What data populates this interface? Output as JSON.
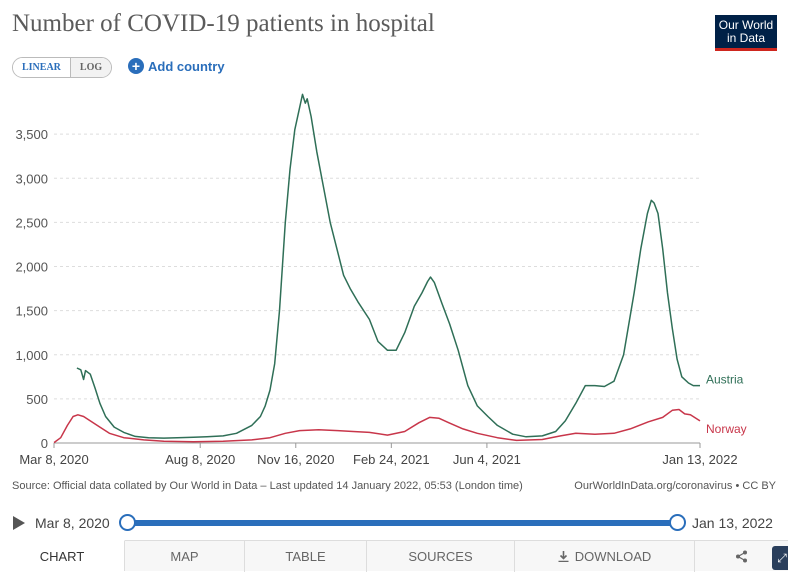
{
  "header": {
    "title": "Number of COVID-19 patients in hospital",
    "logo_line1": "Our World",
    "logo_line2": "in Data"
  },
  "controls": {
    "linear_label": "LINEAR",
    "log_label": "LOG",
    "add_country_label": "Add country"
  },
  "chart_data": {
    "type": "line",
    "title": "Number of COVID-19 patients in hospital",
    "xlabel": "",
    "ylabel": "",
    "ylim": [
      0,
      4000
    ],
    "y_ticks": [
      0,
      500,
      1000,
      1500,
      2000,
      2500,
      3000,
      3500
    ],
    "y_tick_labels": [
      "0",
      "500",
      "1,000",
      "1,500",
      "2,000",
      "2,500",
      "3,000",
      "3,500"
    ],
    "x_range": [
      "2020-03-08",
      "2022-01-13"
    ],
    "x_ticks": [
      "2020-03-08",
      "2020-08-08",
      "2020-11-16",
      "2021-02-24",
      "2021-06-04",
      "2022-01-13"
    ],
    "x_tick_labels": [
      "Mar 8, 2020",
      "Aug 8, 2020",
      "Nov 16, 2020",
      "Feb 24, 2021",
      "Jun 4, 2021",
      "Jan 13, 2022"
    ],
    "grid": "horizontal-dashed",
    "legend": "inline-right",
    "series": [
      {
        "name": "Austria",
        "color": "#2f6f57",
        "points": [
          [
            "2020-04-01",
            850
          ],
          [
            "2020-04-05",
            830
          ],
          [
            "2020-04-08",
            720
          ],
          [
            "2020-04-10",
            820
          ],
          [
            "2020-04-15",
            780
          ],
          [
            "2020-04-20",
            620
          ],
          [
            "2020-04-25",
            450
          ],
          [
            "2020-05-01",
            300
          ],
          [
            "2020-05-10",
            180
          ],
          [
            "2020-05-20",
            120
          ],
          [
            "2020-06-01",
            75
          ],
          [
            "2020-06-15",
            60
          ],
          [
            "2020-07-01",
            55
          ],
          [
            "2020-07-15",
            60
          ],
          [
            "2020-08-01",
            65
          ],
          [
            "2020-08-15",
            70
          ],
          [
            "2020-09-01",
            80
          ],
          [
            "2020-09-15",
            110
          ],
          [
            "2020-10-01",
            200
          ],
          [
            "2020-10-10",
            300
          ],
          [
            "2020-10-15",
            420
          ],
          [
            "2020-10-20",
            600
          ],
          [
            "2020-10-25",
            900
          ],
          [
            "2020-10-30",
            1500
          ],
          [
            "2020-11-05",
            2500
          ],
          [
            "2020-11-10",
            3100
          ],
          [
            "2020-11-15",
            3550
          ],
          [
            "2020-11-20",
            3800
          ],
          [
            "2020-11-23",
            3950
          ],
          [
            "2020-11-26",
            3850
          ],
          [
            "2020-11-28",
            3900
          ],
          [
            "2020-12-02",
            3700
          ],
          [
            "2020-12-08",
            3300
          ],
          [
            "2020-12-15",
            2900
          ],
          [
            "2020-12-22",
            2500
          ],
          [
            "2020-12-29",
            2200
          ],
          [
            "2021-01-05",
            1900
          ],
          [
            "2021-01-12",
            1750
          ],
          [
            "2021-01-20",
            1600
          ],
          [
            "2021-02-01",
            1400
          ],
          [
            "2021-02-10",
            1150
          ],
          [
            "2021-02-20",
            1050
          ],
          [
            "2021-03-01",
            1050
          ],
          [
            "2021-03-10",
            1250
          ],
          [
            "2021-03-20",
            1550
          ],
          [
            "2021-03-28",
            1700
          ],
          [
            "2021-04-03",
            1830
          ],
          [
            "2021-04-06",
            1880
          ],
          [
            "2021-04-10",
            1820
          ],
          [
            "2021-04-18",
            1580
          ],
          [
            "2021-04-26",
            1350
          ],
          [
            "2021-05-05",
            1050
          ],
          [
            "2021-05-15",
            650
          ],
          [
            "2021-05-25",
            420
          ],
          [
            "2021-06-05",
            300
          ],
          [
            "2021-06-15",
            200
          ],
          [
            "2021-07-01",
            100
          ],
          [
            "2021-07-15",
            70
          ],
          [
            "2021-08-01",
            80
          ],
          [
            "2021-08-15",
            130
          ],
          [
            "2021-08-25",
            250
          ],
          [
            "2021-09-05",
            450
          ],
          [
            "2021-09-15",
            650
          ],
          [
            "2021-09-25",
            650
          ],
          [
            "2021-10-05",
            640
          ],
          [
            "2021-10-15",
            700
          ],
          [
            "2021-10-25",
            1000
          ],
          [
            "2021-11-05",
            1700
          ],
          [
            "2021-11-12",
            2200
          ],
          [
            "2021-11-19",
            2600
          ],
          [
            "2021-11-23",
            2750
          ],
          [
            "2021-11-26",
            2720
          ],
          [
            "2021-11-30",
            2600
          ],
          [
            "2021-12-05",
            2200
          ],
          [
            "2021-12-10",
            1700
          ],
          [
            "2021-12-15",
            1300
          ],
          [
            "2021-12-20",
            950
          ],
          [
            "2021-12-25",
            750
          ],
          [
            "2022-01-01",
            680
          ],
          [
            "2022-01-06",
            650
          ],
          [
            "2022-01-13",
            650
          ]
        ]
      },
      {
        "name": "Norway",
        "color": "#c8364a",
        "points": [
          [
            "2020-03-08",
            5
          ],
          [
            "2020-03-15",
            60
          ],
          [
            "2020-03-22",
            200
          ],
          [
            "2020-03-28",
            300
          ],
          [
            "2020-04-02",
            320
          ],
          [
            "2020-04-08",
            300
          ],
          [
            "2020-04-15",
            250
          ],
          [
            "2020-04-25",
            180
          ],
          [
            "2020-05-05",
            110
          ],
          [
            "2020-05-20",
            60
          ],
          [
            "2020-06-10",
            35
          ],
          [
            "2020-07-01",
            20
          ],
          [
            "2020-08-01",
            15
          ],
          [
            "2020-09-01",
            20
          ],
          [
            "2020-10-01",
            35
          ],
          [
            "2020-10-20",
            60
          ],
          [
            "2020-11-05",
            110
          ],
          [
            "2020-11-20",
            140
          ],
          [
            "2020-12-10",
            150
          ],
          [
            "2020-12-30",
            140
          ],
          [
            "2021-01-15",
            130
          ],
          [
            "2021-02-01",
            120
          ],
          [
            "2021-02-20",
            90
          ],
          [
            "2021-03-10",
            130
          ],
          [
            "2021-03-25",
            230
          ],
          [
            "2021-04-05",
            290
          ],
          [
            "2021-04-15",
            280
          ],
          [
            "2021-04-25",
            230
          ],
          [
            "2021-05-10",
            160
          ],
          [
            "2021-05-25",
            110
          ],
          [
            "2021-06-15",
            60
          ],
          [
            "2021-07-05",
            30
          ],
          [
            "2021-08-01",
            40
          ],
          [
            "2021-08-20",
            80
          ],
          [
            "2021-09-05",
            110
          ],
          [
            "2021-09-25",
            100
          ],
          [
            "2021-10-15",
            110
          ],
          [
            "2021-11-01",
            160
          ],
          [
            "2021-11-20",
            240
          ],
          [
            "2021-12-05",
            290
          ],
          [
            "2021-12-15",
            370
          ],
          [
            "2021-12-22",
            380
          ],
          [
            "2021-12-28",
            330
          ],
          [
            "2022-01-03",
            320
          ],
          [
            "2022-01-13",
            250
          ]
        ]
      }
    ]
  },
  "footer": {
    "source_text": "Source: Official data collated by Our World in Data – Last updated 14 January 2022, 05:53 (London time)",
    "attribution": "OurWorldInData.org/coronavirus • CC BY"
  },
  "timeline": {
    "start_label": "Mar 8, 2020",
    "end_label": "Jan 13, 2022",
    "start_fraction": 0,
    "end_fraction": 1
  },
  "tabs": [
    {
      "label": "CHART",
      "active": true
    },
    {
      "label": "MAP",
      "active": false
    },
    {
      "label": "TABLE",
      "active": false
    },
    {
      "label": "SOURCES",
      "active": false
    },
    {
      "label": "DOWNLOAD",
      "active": false
    }
  ],
  "icons": {
    "play": "play-icon",
    "add": "plus-circle-icon",
    "download": "download-icon",
    "share": "share-icon"
  }
}
